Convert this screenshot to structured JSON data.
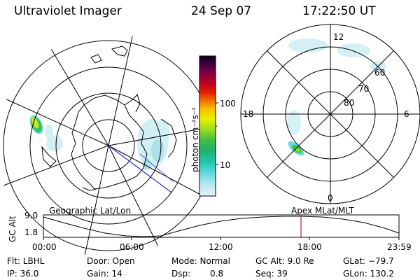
{
  "header": {
    "instrument": "Ultraviolet Imager",
    "date": "24 Sep 07",
    "time": "17:22:50 UT"
  },
  "colorbar": {
    "unit_label": "photon cm⁻²s⁻¹",
    "ticks": [
      "100",
      "10"
    ],
    "colors": [
      "#e8f4f8",
      "#b8e8f0",
      "#68d8e0",
      "#20c8b0",
      "#20b070",
      "#40c040",
      "#a0e020",
      "#e8f000",
      "#f8c000",
      "#f07000",
      "#e02000",
      "#c00020",
      "#800040",
      "#400040",
      "#100020"
    ]
  },
  "polar_plot": {
    "mlt_labels": [
      "12",
      "18",
      "6",
      "0"
    ],
    "lat_labels": [
      "60",
      "70",
      "80"
    ]
  },
  "orbit": {
    "y_axis_label": "GC Alt",
    "y_ticks": [
      "9.0",
      "1.8"
    ],
    "left_title": "Geographic Lat/Lon",
    "right_title": "Apex MLat/MLT",
    "x_ticks": [
      "00:00",
      "06:00",
      "12:00",
      "18:00",
      "23:59"
    ],
    "marker_time_hours": 17.38
  },
  "info": {
    "filter": "Flt: LBHL",
    "ip": "IP: 36.0",
    "door": "Door: Open",
    "gain": "Gain: 14",
    "mode": "Mode: Normal",
    "dsp_label": "Dsp:",
    "dsp_value": "0.8",
    "gc_alt": "GC Alt: 9.0 Re",
    "seq": "Seq: 39",
    "glat": "GLat: −79.7",
    "glon": "GLon: 130.2"
  }
}
